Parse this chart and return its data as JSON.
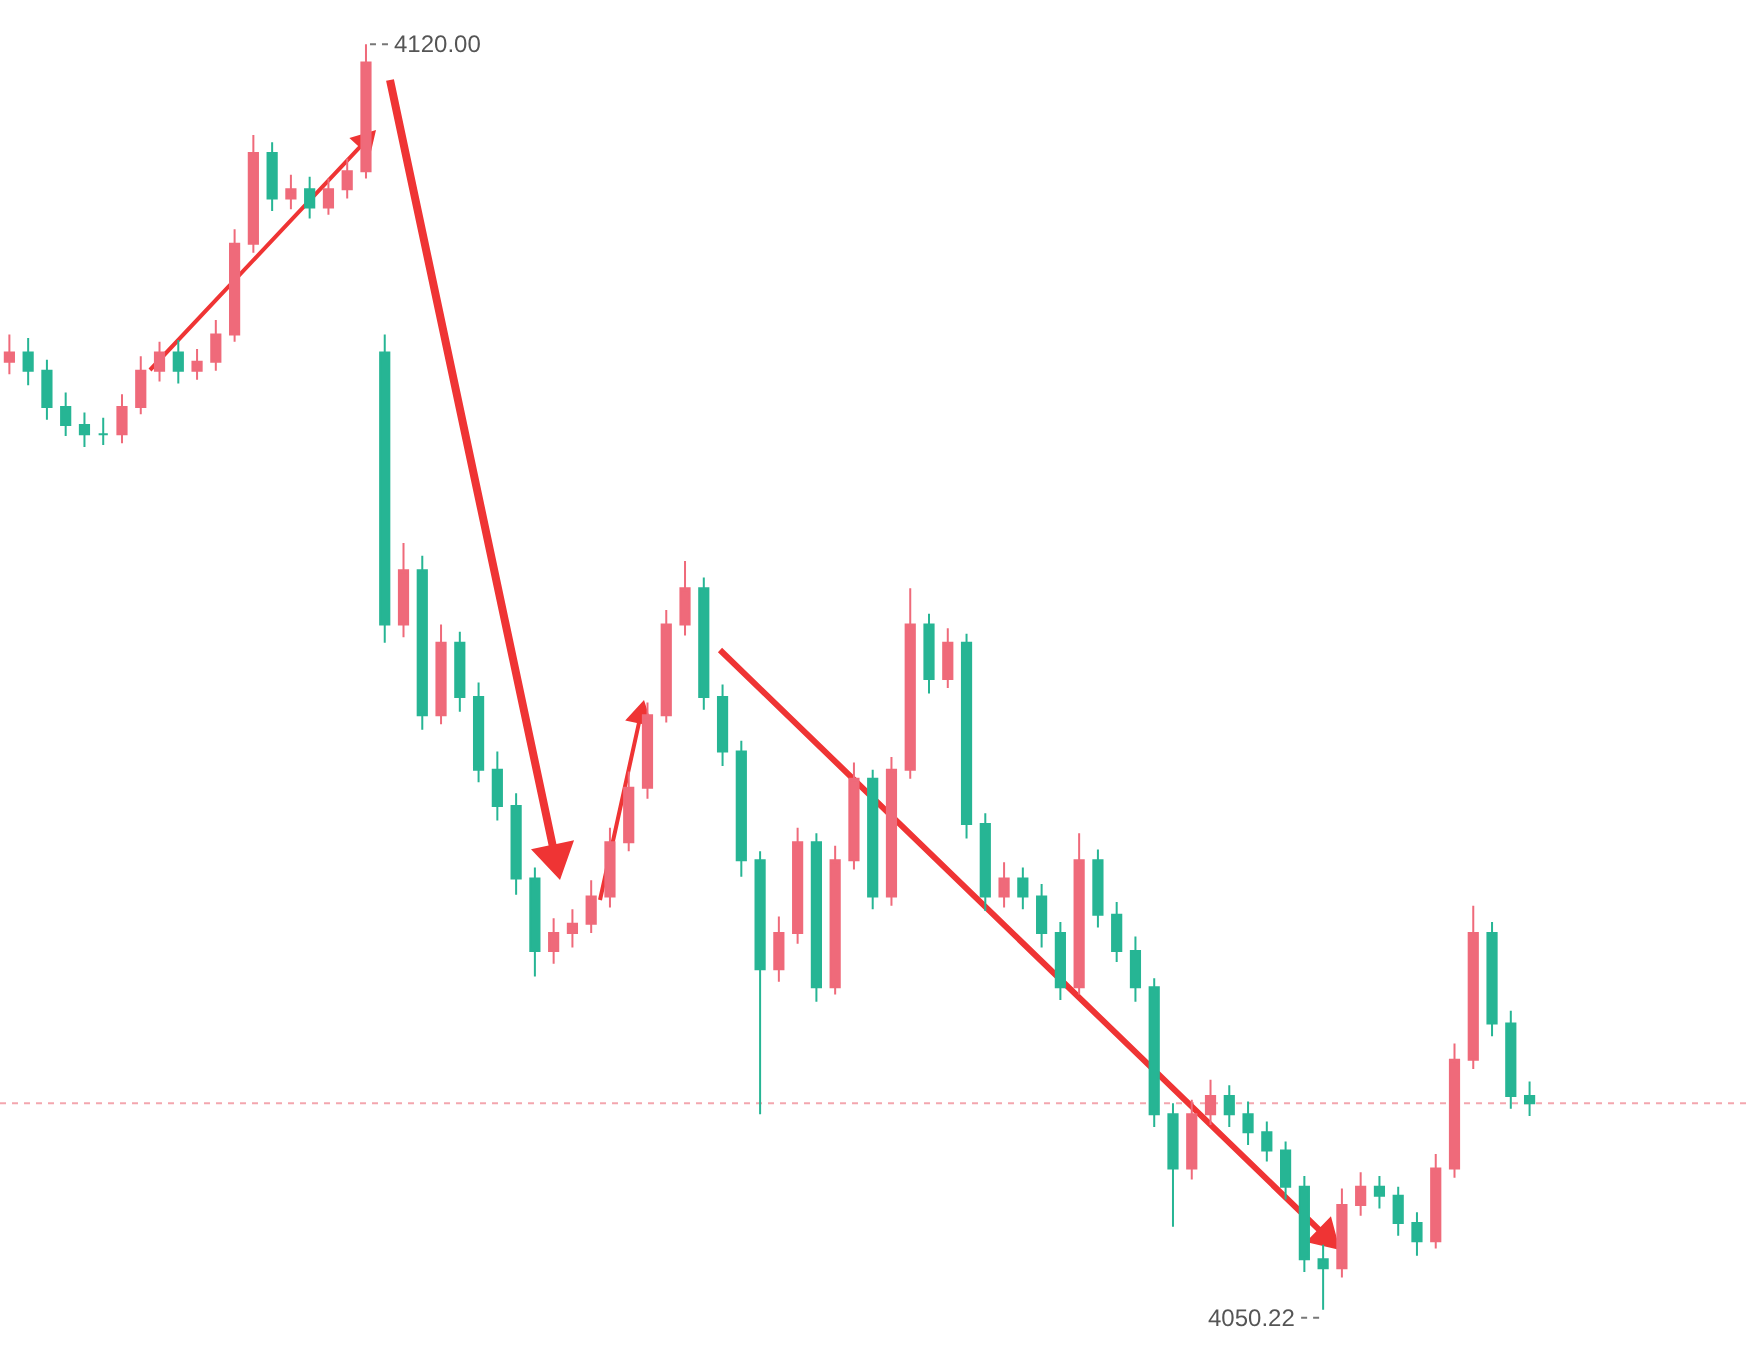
{
  "chart_data": {
    "type": "candlestick",
    "categories": [
      null,
      null,
      null,
      null,
      null,
      null,
      null,
      null,
      null,
      null,
      null,
      null,
      null,
      null,
      null,
      null,
      null,
      null,
      null,
      null,
      null,
      null,
      null,
      null,
      null,
      null,
      null,
      null,
      null,
      null,
      null,
      null,
      null,
      null,
      null,
      null,
      null,
      null,
      null,
      null,
      null,
      null,
      null,
      null,
      null,
      null,
      null,
      null,
      null,
      null,
      null,
      null,
      null,
      null,
      null,
      null,
      null,
      null,
      null,
      null,
      null,
      null,
      null,
      null,
      null,
      null,
      null,
      null,
      null,
      null,
      null,
      null,
      null,
      null,
      null,
      null,
      null,
      null,
      null,
      null,
      null,
      null
    ],
    "ohlc": [
      [
        4102.5,
        4104,
        4101.8,
        4103
      ],
      [
        4103,
        4103.8,
        4101.2,
        4102
      ],
      [
        4102,
        4102.6,
        4099.3,
        4100
      ],
      [
        4100,
        4100.8,
        4098.4,
        4099
      ],
      [
        4099,
        4099.7,
        4097.8,
        4098.5
      ],
      [
        4098.5,
        4099.4,
        4097.9,
        4098.5
      ],
      [
        4098.5,
        4100.7,
        4098,
        4100
      ],
      [
        4100,
        4102.8,
        4099.6,
        4102
      ],
      [
        4102,
        4103.6,
        4101.4,
        4103
      ],
      [
        4103,
        4103.7,
        4101.3,
        4102
      ],
      [
        4102,
        4103.2,
        4101.5,
        4102.5
      ],
      [
        4102.5,
        4104.8,
        4102,
        4104
      ],
      [
        4104,
        4109.8,
        4103.6,
        4109
      ],
      [
        4109,
        4115,
        4108.5,
        4114
      ],
      [
        4114,
        4114.6,
        4110.8,
        4111.5
      ],
      [
        4111.5,
        4112.8,
        4110.9,
        4112
      ],
      [
        4112,
        4112.7,
        4110.4,
        4111
      ],
      [
        4111,
        4112.6,
        4110.6,
        4112
      ],
      [
        4112,
        4113.7,
        4111.5,
        4113
      ],
      [
        4113,
        4120.0,
        4112.6,
        4119
      ],
      [
        4103,
        4104,
        4087,
        4088
      ],
      [
        4088,
        4092.5,
        4087.3,
        4091
      ],
      [
        4091,
        4091.8,
        4082.2,
        4083
      ],
      [
        4083,
        4088,
        4082.5,
        4087
      ],
      [
        4087,
        4087.6,
        4083.2,
        4084
      ],
      [
        4084,
        4084.8,
        4079.3,
        4080
      ],
      [
        4080,
        4081,
        4077.2,
        4078
      ],
      [
        4078,
        4078.7,
        4073.1,
        4074
      ],
      [
        4074,
        4074.6,
        4068.6,
        4070
      ],
      [
        4070,
        4071.8,
        4069.3,
        4071
      ],
      [
        4071,
        4072.3,
        4070.2,
        4071.5
      ],
      [
        4071.5,
        4073.9,
        4071,
        4073
      ],
      [
        4073,
        4076.8,
        4072.4,
        4076
      ],
      [
        4076,
        4079.9,
        4075.5,
        4079
      ],
      [
        4079,
        4083.7,
        4078.4,
        4083
      ],
      [
        4083,
        4088.8,
        4082.6,
        4088
      ],
      [
        4088,
        4091.5,
        4087.4,
        4090
      ],
      [
        4090,
        4090.6,
        4083.3,
        4084
      ],
      [
        4084,
        4084.7,
        4080.2,
        4081
      ],
      [
        4081,
        4081.6,
        4074.1,
        4075
      ],
      [
        4075,
        4075.5,
        4061,
        4069
      ],
      [
        4069,
        4071.9,
        4068.3,
        4071
      ],
      [
        4071,
        4076.8,
        4070.4,
        4076
      ],
      [
        4076,
        4076.5,
        4067.2,
        4068
      ],
      [
        4068,
        4075.8,
        4067.6,
        4075
      ],
      [
        4075,
        4080.4,
        4074.5,
        4079.5
      ],
      [
        4079.5,
        4080,
        4072.3,
        4073
      ],
      [
        4073,
        4080.7,
        4072.5,
        4080
      ],
      [
        4080,
        4090,
        4079.5,
        4088
      ],
      [
        4088,
        4088.6,
        4084.2,
        4085
      ],
      [
        4085,
        4087.8,
        4084.5,
        4087
      ],
      [
        4087,
        4087.5,
        4076.2,
        4077
      ],
      [
        4077,
        4077.6,
        4072.2,
        4073
      ],
      [
        4073,
        4074.9,
        4072.4,
        4074
      ],
      [
        4074,
        4074.6,
        4072.3,
        4073
      ],
      [
        4073,
        4073.7,
        4070.2,
        4071
      ],
      [
        4071,
        4071.6,
        4067.3,
        4068
      ],
      [
        4068,
        4076.5,
        4067.6,
        4075
      ],
      [
        4075,
        4075.6,
        4071.3,
        4072
      ],
      [
        4072,
        4072.7,
        4069.4,
        4070
      ],
      [
        4070,
        4070.8,
        4067.2,
        4068
      ],
      [
        4068,
        4068.5,
        4060.3,
        4061
      ],
      [
        4061,
        4061.6,
        4054.8,
        4058
      ],
      [
        4058,
        4061.8,
        4057.4,
        4061
      ],
      [
        4061,
        4062.9,
        4060.4,
        4062
      ],
      [
        4062,
        4062.6,
        4060.3,
        4061
      ],
      [
        4061,
        4061.7,
        4059.3,
        4060
      ],
      [
        4060,
        4060.6,
        4058.4,
        4059
      ],
      [
        4059,
        4059.5,
        4056.3,
        4057
      ],
      [
        4057,
        4057.6,
        4052.3,
        4053
      ],
      [
        4053,
        4053.8,
        4050.22,
        4052.5
      ],
      [
        4052.5,
        4056.9,
        4052,
        4056
      ],
      [
        4056,
        4057.8,
        4055.4,
        4057
      ],
      [
        4057,
        4057.6,
        4055.8,
        4056.5
      ],
      [
        4056.5,
        4057,
        4054.3,
        4055
      ],
      [
        4055,
        4055.6,
        4053.2,
        4054
      ],
      [
        4054,
        4058.8,
        4053.6,
        4058
      ],
      [
        4058,
        4064.9,
        4057.5,
        4064
      ],
      [
        4064,
        4072.5,
        4063.5,
        4071
      ],
      [
        4071,
        4071.6,
        4065.3,
        4066
      ],
      [
        4066,
        4066.7,
        4061.3,
        4062
      ],
      [
        4062,
        4062.8,
        4060.9,
        4061.6
      ]
    ],
    "colors": [
      "#ef6a7a",
      "#26b594",
      "#26b594",
      "#26b594",
      "#26b594",
      "#26b594",
      "#ef6a7a",
      "#ef6a7a",
      "#ef6a7a",
      "#26b594",
      "#ef6a7a",
      "#ef6a7a",
      "#ef6a7a",
      "#ef6a7a",
      "#26b594",
      "#ef6a7a",
      "#26b594",
      "#ef6a7a",
      "#ef6a7a",
      "#ef6a7a",
      "#26b594",
      "#ef6a7a",
      "#26b594",
      "#ef6a7a",
      "#26b594",
      "#26b594",
      "#26b594",
      "#26b594",
      "#26b594",
      "#ef6a7a",
      "#ef6a7a",
      "#ef6a7a",
      "#ef6a7a",
      "#ef6a7a",
      "#ef6a7a",
      "#ef6a7a",
      "#ef6a7a",
      "#26b594",
      "#26b594",
      "#26b594",
      "#26b594",
      "#ef6a7a",
      "#ef6a7a",
      "#26b594",
      "#ef6a7a",
      "#ef6a7a",
      "#26b594",
      "#ef6a7a",
      "#ef6a7a",
      "#26b594",
      "#ef6a7a",
      "#26b594",
      "#26b594",
      "#ef6a7a",
      "#26b594",
      "#26b594",
      "#26b594",
      "#ef6a7a",
      "#26b594",
      "#26b594",
      "#26b594",
      "#26b594",
      "#26b594",
      "#ef6a7a",
      "#ef6a7a",
      "#26b594",
      "#26b594",
      "#26b594",
      "#26b594",
      "#26b594",
      "#26b594",
      "#ef6a7a",
      "#ef6a7a",
      "#26b594",
      "#26b594",
      "#26b594",
      "#ef6a7a",
      "#ef6a7a",
      "#ef6a7a",
      "#26b594",
      "#26b594",
      "#26b594"
    ],
    "annotations": [
      "4120.00",
      "4050.22"
    ],
    "ref_lines": [
      {
        "axis": "y",
        "value": 4061.6,
        "color": "#f3a6ae",
        "line_style": "dotted"
      }
    ]
  }
}
